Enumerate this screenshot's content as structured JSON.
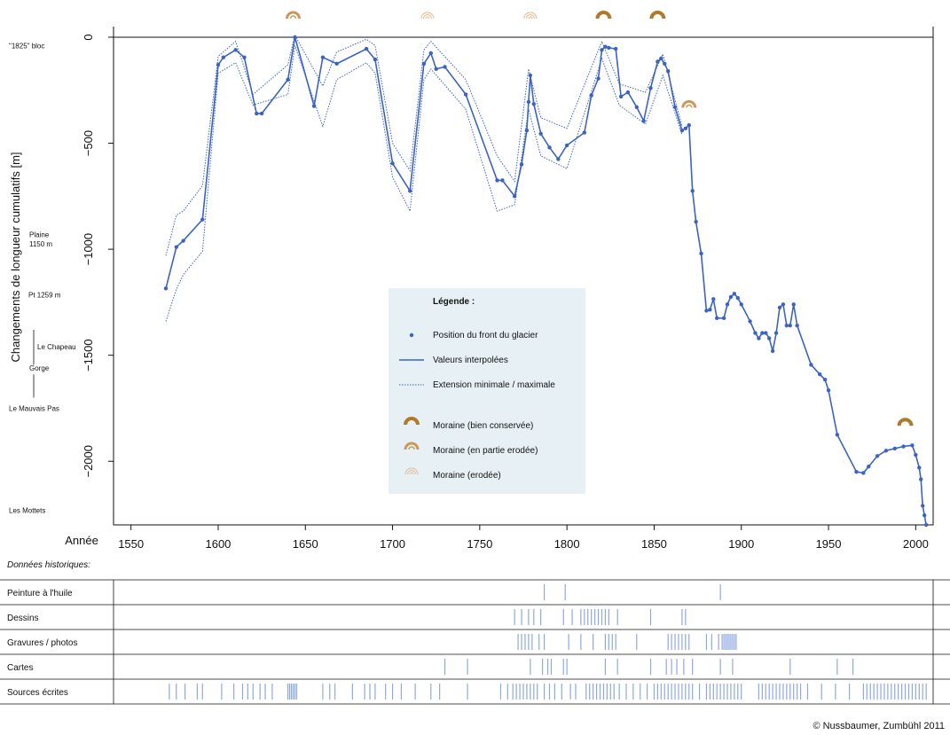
{
  "chart_data": {
    "type": "line",
    "title": "",
    "xlabel": "Année",
    "ylabel": "Changements de longueur cumulatifs [m]",
    "xlim": [
      1540,
      2010
    ],
    "ylim": [
      -2300,
      50
    ],
    "x_ticks": [
      1550,
      1600,
      1650,
      1700,
      1750,
      1800,
      1850,
      1900,
      1950,
      2000
    ],
    "y_ticks": [
      0,
      -500,
      -1000,
      -1500,
      -2000
    ],
    "reference_line": 0,
    "location_labels": [
      {
        "text": "\"1825\" bloc",
        "y": -40
      },
      {
        "text": "Plaine",
        "y": -930
      },
      {
        "text": "1150 m",
        "y": -975
      },
      {
        "text": "Pt 1259 m",
        "y": -1215
      },
      {
        "text": "Le Chapeau",
        "y": -1460
      },
      {
        "text": "Gorge",
        "y": -1560
      },
      {
        "text": "Le Mauvais Pas",
        "y": -1750
      },
      {
        "text": "Les Mottets",
        "y": -2230
      }
    ],
    "series": [
      {
        "name": "Valeurs interpolées",
        "style": "solid",
        "x": [
          1570,
          1576,
          1580,
          1591,
          1600,
          1603,
          1610,
          1615,
          1622,
          1625,
          1640,
          1644,
          1655,
          1660,
          1668,
          1685,
          1690,
          1700,
          1710,
          1718,
          1722,
          1725,
          1730,
          1742,
          1760,
          1763,
          1770,
          1774,
          1777,
          1778,
          1779,
          1781,
          1785,
          1790,
          1795,
          1800,
          1810,
          1814,
          1818,
          1820,
          1822,
          1824,
          1828,
          1831,
          1835,
          1840,
          1844,
          1848,
          1852,
          1854,
          1856,
          1858,
          1862,
          1866,
          1868,
          1870,
          1872,
          1874,
          1877,
          1880,
          1882,
          1884,
          1886,
          1890,
          1892,
          1894,
          1896,
          1898,
          1900,
          1905,
          1908,
          1910,
          1912,
          1914,
          1916,
          1918,
          1920,
          1922,
          1924,
          1926,
          1928,
          1930,
          1932,
          1940,
          1945,
          1948,
          1950,
          1955,
          1966,
          1970,
          1973,
          1978,
          1983,
          1988,
          1993,
          1998,
          2000,
          2002,
          2003,
          2004,
          2005,
          2006
        ],
        "y": [
          -1185,
          -990,
          -960,
          -860,
          -130,
          -95,
          -60,
          -95,
          -360,
          -360,
          -200,
          0,
          -325,
          -95,
          -125,
          -55,
          -105,
          -595,
          -725,
          -125,
          -75,
          -150,
          -140,
          -270,
          -675,
          -675,
          -750,
          -600,
          -440,
          -305,
          -180,
          -315,
          -455,
          -520,
          -575,
          -510,
          -450,
          -275,
          -195,
          -60,
          -45,
          -50,
          -55,
          -280,
          -260,
          -330,
          -395,
          -240,
          -115,
          -100,
          -125,
          -160,
          -330,
          -440,
          -430,
          -415,
          -725,
          -870,
          -1020,
          -1290,
          -1285,
          -1235,
          -1325,
          -1325,
          -1260,
          -1225,
          -1210,
          -1230,
          -1260,
          -1340,
          -1395,
          -1420,
          -1395,
          -1395,
          -1420,
          -1480,
          -1395,
          -1275,
          -1260,
          -1360,
          -1360,
          -1260,
          -1360,
          -1545,
          -1590,
          -1615,
          -1665,
          -1875,
          -2050,
          -2055,
          -2025,
          -1975,
          -1950,
          -1940,
          -1930,
          -1925,
          -1970,
          -2030,
          -2085,
          -2210,
          -2255,
          -2300
        ]
      },
      {
        "name": "Extension minimale",
        "style": "dotted",
        "x": [
          1570,
          1576,
          1580,
          1591,
          1600,
          1610,
          1620,
          1640,
          1644,
          1660,
          1668,
          1685,
          1690,
          1700,
          1710,
          1718,
          1722,
          1742,
          1760,
          1770,
          1778,
          1785,
          1800,
          1820,
          1830,
          1845,
          1855,
          1866
        ],
        "y": [
          -1340,
          -1190,
          -1120,
          -1010,
          -170,
          -120,
          -320,
          -270,
          -40,
          -420,
          -200,
          -120,
          -170,
          -660,
          -820,
          -200,
          -150,
          -340,
          -820,
          -790,
          -340,
          -560,
          -620,
          -100,
          -320,
          -410,
          -180,
          -460
        ]
      },
      {
        "name": "Extension maximale",
        "style": "dotted",
        "x": [
          1570,
          1576,
          1580,
          1591,
          1600,
          1610,
          1620,
          1640,
          1644,
          1660,
          1668,
          1685,
          1690,
          1700,
          1710,
          1718,
          1722,
          1742,
          1760,
          1770,
          1778,
          1785,
          1800,
          1820,
          1830,
          1845,
          1855,
          1866
        ],
        "y": [
          -1030,
          -840,
          -820,
          -700,
          -90,
          -20,
          -270,
          -130,
          10,
          -230,
          -70,
          -10,
          -40,
          -500,
          -630,
          -60,
          -20,
          -200,
          -560,
          -680,
          -150,
          -380,
          -430,
          -20,
          -220,
          -260,
          -80,
          -420
        ]
      }
    ],
    "points_series": "Position du front du glacier",
    "moraines": [
      {
        "x": 1643,
        "type": "en partie erodée",
        "position": "top"
      },
      {
        "x": 1720,
        "type": "erodée",
        "position": "top"
      },
      {
        "x": 1779,
        "type": "erodée",
        "position": "top"
      },
      {
        "x": 1821,
        "type": "bien conservée",
        "position": "top"
      },
      {
        "x": 1852,
        "type": "bien conservée",
        "position": "top"
      },
      {
        "x": 1870,
        "type": "en partie erodée",
        "y": -320
      },
      {
        "x": 1994,
        "type": "bien conservée",
        "y": -1820
      }
    ],
    "legend": {
      "title": "Légende :",
      "position": "center",
      "items": [
        {
          "label": "Position du front du glacier",
          "symbol": "point"
        },
        {
          "label": "Valeurs interpolées",
          "symbol": "solid"
        },
        {
          "label": "Extension minimale / maximale",
          "symbol": "dotted"
        },
        {
          "label": "Moraine (bien conservée)",
          "symbol": "moraine-full"
        },
        {
          "label": "Moraine (en partie erodée)",
          "symbol": "moraine-partial"
        },
        {
          "label": "Moraine (erodée)",
          "symbol": "moraine-eroded"
        }
      ]
    },
    "historical": {
      "title": "Données historiques:",
      "rows": [
        {
          "label": "Peinture à l'huile",
          "years": [
            1787,
            1799,
            1888
          ]
        },
        {
          "label": "Dessins",
          "years": [
            1770,
            1774,
            1778,
            1781,
            1785,
            1798,
            1803,
            1808,
            1810,
            1812,
            1814,
            1816,
            1818,
            1820,
            1822,
            1824,
            1829,
            1848,
            1866,
            1868
          ]
        },
        {
          "label": "Gravures / photos",
          "years": [
            1772,
            1774,
            1776,
            1778,
            1780,
            1784,
            1787,
            1801,
            1808,
            1815,
            1822,
            1824,
            1826,
            1828,
            1840,
            1858,
            1860,
            1862,
            1864,
            1866,
            1868,
            1870,
            1880,
            1883,
            1887,
            1889,
            1890,
            1891,
            1892,
            1893,
            1894,
            1895,
            1896,
            1897
          ]
        },
        {
          "label": "Cartes",
          "years": [
            1730,
            1743,
            1779,
            1786,
            1789,
            1791,
            1798,
            1800,
            1822,
            1829,
            1848,
            1857,
            1860,
            1863,
            1867,
            1872,
            1888,
            1895,
            1928,
            1955,
            1964
          ]
        },
        {
          "label": "Sources écrites",
          "years": [
            1572,
            1576,
            1581,
            1588,
            1591,
            1602,
            1609,
            1614,
            1617,
            1620,
            1624,
            1627,
            1631,
            1640,
            1641,
            1642,
            1643,
            1644,
            1645,
            1660,
            1664,
            1667,
            1677,
            1684,
            1687,
            1690,
            1696,
            1700,
            1705,
            1713,
            1722,
            1727,
            1743,
            1762,
            1766,
            1769,
            1771,
            1773,
            1775,
            1777,
            1779,
            1781,
            1783,
            1787,
            1790,
            1793,
            1797,
            1802,
            1805,
            1811,
            1813,
            1815,
            1817,
            1819,
            1821,
            1823,
            1825,
            1827,
            1830,
            1834,
            1838,
            1842,
            1846,
            1850,
            1852,
            1854,
            1856,
            1858,
            1860,
            1862,
            1864,
            1866,
            1868,
            1870,
            1872,
            1876,
            1880,
            1882,
            1884,
            1886,
            1888,
            1890,
            1892,
            1894,
            1896,
            1898,
            1900,
            1910,
            1912,
            1914,
            1916,
            1918,
            1920,
            1922,
            1924,
            1926,
            1928,
            1930,
            1932,
            1934,
            1938,
            1946,
            1954,
            1962,
            1970,
            1972,
            1974,
            1976,
            1978,
            1980,
            1982,
            1984,
            1986,
            1988,
            1990,
            1992,
            1994,
            1996,
            1998,
            2000,
            2002,
            2004,
            2006
          ]
        }
      ]
    },
    "colors": {
      "line": "#3b63c4",
      "marks": "#8ea8e0",
      "legend_bg": "#e7f1f5",
      "moraine_full": "#b07a2a",
      "moraine_partial": "#c9985a",
      "moraine_eroded": "#e3b98a"
    }
  },
  "copyright": "© Nussbaumer, Zumbühl 2011"
}
